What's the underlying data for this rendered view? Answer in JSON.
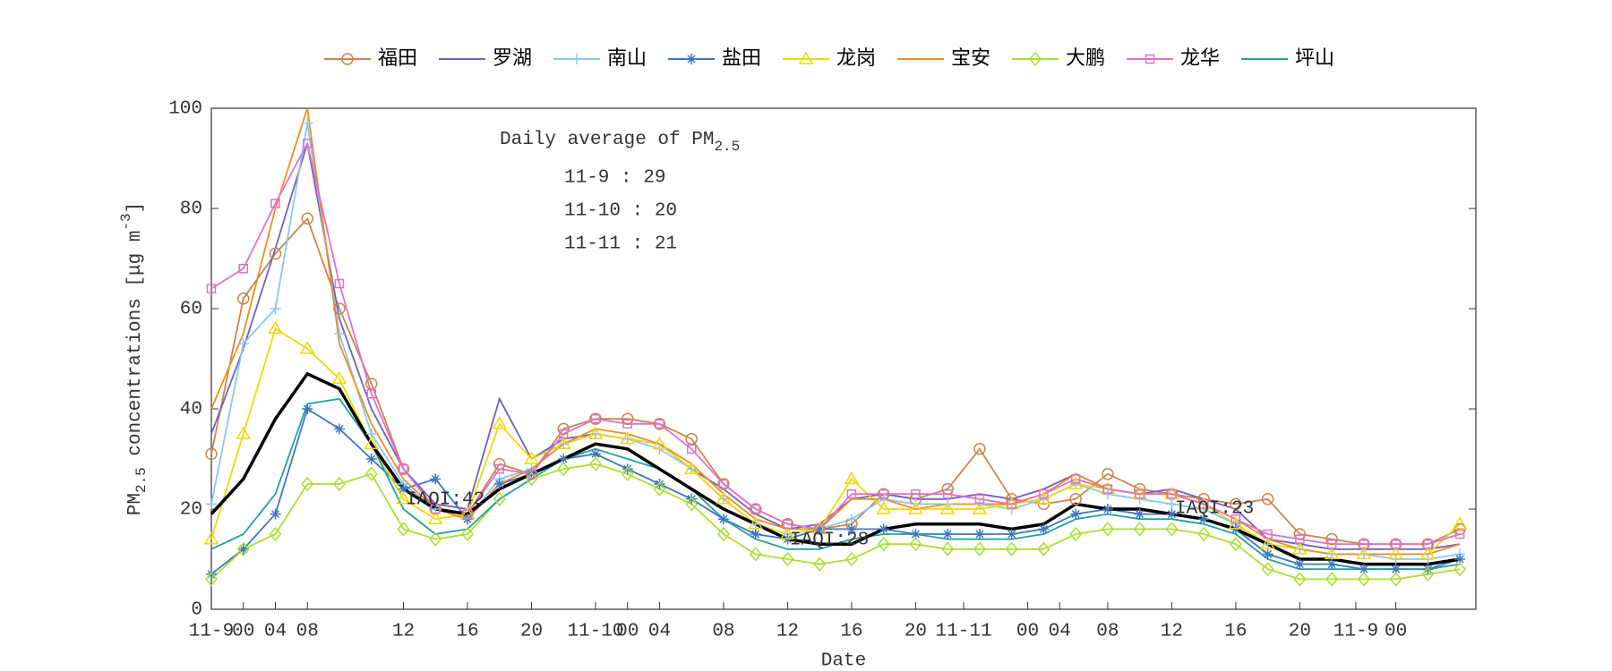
{
  "chart_data": {
    "type": "line",
    "xlabel": "Date",
    "ylabel": [
      "PM",
      "2.5",
      " concentrations [μg m",
      "-3",
      "]"
    ],
    "annotation_title": [
      "Daily average of PM",
      "2.5"
    ],
    "annotations": [
      "11-9 : 29",
      "11-10 : 20",
      "11-11 : 21"
    ],
    "iaqi_labels": [
      "IAQI:42",
      "IAQI:28",
      "IAQI:23"
    ],
    "xlim": [
      0,
      79
    ],
    "ylim": [
      0,
      100
    ],
    "yticks": [
      0,
      20,
      40,
      60,
      80,
      100
    ],
    "xticks": [
      {
        "value": 0,
        "label": "11-9"
      },
      {
        "value": 2,
        "label": "00"
      },
      {
        "value": 4,
        "label": "04"
      },
      {
        "value": 6,
        "label": "08"
      },
      {
        "value": 12,
        "label": "12"
      },
      {
        "value": 16,
        "label": "16"
      },
      {
        "value": 20,
        "label": "20"
      },
      {
        "value": 24,
        "label": "11-10"
      },
      {
        "value": 26,
        "label": "00"
      },
      {
        "value": 28,
        "label": "04"
      },
      {
        "value": 32,
        "label": "08"
      },
      {
        "value": 36,
        "label": "12"
      },
      {
        "value": 40,
        "label": "16"
      },
      {
        "value": 44,
        "label": "20"
      },
      {
        "value": 47,
        "label": "11-11"
      },
      {
        "value": 51,
        "label": "00"
      },
      {
        "value": 53,
        "label": "04"
      },
      {
        "value": 56,
        "label": "08"
      },
      {
        "value": 60,
        "label": "12"
      },
      {
        "value": 64,
        "label": "16"
      },
      {
        "value": 68,
        "label": "20"
      },
      {
        "value": 71.5,
        "label": "11-9"
      },
      {
        "value": 74,
        "label": "00"
      }
    ],
    "x": [
      0,
      2,
      4,
      6,
      8,
      10,
      12,
      14,
      16,
      18,
      20,
      22,
      24,
      26,
      28,
      30,
      32,
      34,
      36,
      38,
      40,
      42,
      44,
      46,
      48,
      50,
      52,
      54,
      56,
      58,
      60,
      62,
      64,
      66,
      68,
      70,
      72,
      74,
      76,
      78
    ],
    "series": [
      {
        "name": "福田",
        "color": "#c8864c",
        "marker": "circle",
        "values": [
          31,
          62,
          71,
          78,
          60,
          45,
          28,
          20,
          19,
          29,
          27,
          36,
          38,
          38,
          37,
          34,
          25,
          20,
          17,
          16,
          17,
          23,
          22,
          24,
          32,
          22,
          21,
          22,
          27,
          24,
          23,
          22,
          21,
          22,
          15,
          14,
          13,
          13,
          13,
          16
        ]
      },
      {
        "name": "罗湖",
        "color": "#7060c0",
        "marker": "none",
        "values": [
          35,
          52,
          72,
          93,
          58,
          40,
          28,
          21,
          20,
          42,
          30,
          34,
          35,
          34,
          33,
          28,
          24,
          19,
          16,
          17,
          22,
          23,
          22,
          22,
          23,
          22,
          24,
          27,
          24,
          23,
          24,
          22,
          20,
          14,
          13,
          12,
          12,
          12,
          12,
          13
        ]
      },
      {
        "name": "南山",
        "color": "#88c8f0",
        "marker": "plus",
        "values": [
          21,
          53,
          60,
          97,
          55,
          35,
          25,
          20,
          18,
          26,
          28,
          33,
          35,
          34,
          32,
          28,
          22,
          17,
          15,
          16,
          18,
          22,
          21,
          21,
          21,
          20,
          22,
          25,
          23,
          22,
          21,
          20,
          17,
          13,
          12,
          11,
          11,
          10,
          10,
          11
        ]
      },
      {
        "name": "盐田",
        "color": "#3c78c0",
        "marker": "star",
        "values": [
          7,
          12,
          19,
          40,
          36,
          30,
          24,
          26,
          18,
          25,
          27,
          30,
          31,
          28,
          25,
          22,
          18,
          15,
          14,
          16,
          16,
          16,
          15,
          15,
          15,
          15,
          16,
          19,
          20,
          19,
          19,
          18,
          16,
          11,
          9,
          9,
          8,
          8,
          8,
          10
        ]
      },
      {
        "name": "龙岗",
        "color": "#f0d800",
        "marker": "triangle",
        "values": [
          14,
          35,
          56,
          52,
          46,
          33,
          22,
          18,
          19,
          37,
          30,
          33,
          35,
          34,
          33,
          28,
          22,
          17,
          15,
          16,
          26,
          20,
          20,
          20,
          20,
          21,
          22,
          25,
          24,
          23,
          23,
          21,
          17,
          13,
          12,
          11,
          11,
          11,
          11,
          17
        ]
      },
      {
        "name": "宝安",
        "color": "#f08c20",
        "marker": "none",
        "values": [
          40,
          55,
          80,
          100,
          53,
          37,
          26,
          20,
          18,
          25,
          28,
          33,
          36,
          35,
          33,
          29,
          23,
          18,
          16,
          16,
          22,
          22,
          20,
          21,
          21,
          21,
          23,
          27,
          24,
          23,
          23,
          21,
          18,
          14,
          12,
          11,
          11,
          11,
          11,
          13
        ]
      },
      {
        "name": "大鹏",
        "color": "#a8e030",
        "marker": "diamond",
        "values": [
          6,
          12,
          15,
          25,
          25,
          27,
          16,
          14,
          15,
          22,
          26,
          28,
          29,
          27,
          24,
          21,
          15,
          11,
          10,
          9,
          10,
          13,
          13,
          12,
          12,
          12,
          12,
          15,
          16,
          16,
          16,
          15,
          13,
          8,
          6,
          6,
          6,
          6,
          7,
          8
        ]
      },
      {
        "name": "龙华",
        "color": "#e070d0",
        "marker": "square",
        "values": [
          64,
          68,
          81,
          93,
          65,
          43,
          28,
          20,
          19,
          28,
          27,
          35,
          38,
          37,
          37,
          32,
          25,
          20,
          17,
          16,
          23,
          23,
          23,
          23,
          22,
          21,
          23,
          26,
          24,
          23,
          23,
          21,
          18,
          15,
          14,
          13,
          13,
          13,
          13,
          15
        ]
      },
      {
        "name": "坪山",
        "color": "#20a0a0",
        "marker": "none",
        "values": [
          12,
          15,
          23,
          41,
          42,
          33,
          20,
          15,
          16,
          22,
          26,
          30,
          32,
          30,
          28,
          24,
          18,
          14,
          12,
          12,
          14,
          15,
          15,
          14,
          14,
          14,
          15,
          18,
          19,
          18,
          18,
          17,
          15,
          10,
          8,
          8,
          8,
          8,
          8,
          9
        ]
      },
      {
        "color": "#000000",
        "marker": "none",
        "values": [
          19,
          26,
          38,
          47,
          44,
          33,
          24,
          20,
          19,
          24,
          27,
          30,
          33,
          32,
          28,
          24,
          20,
          17,
          14,
          13,
          13,
          16,
          17,
          17,
          17,
          16,
          17,
          21,
          20,
          20,
          19,
          18,
          16,
          13,
          10,
          10,
          9,
          9,
          9,
          10
        ]
      }
    ]
  }
}
